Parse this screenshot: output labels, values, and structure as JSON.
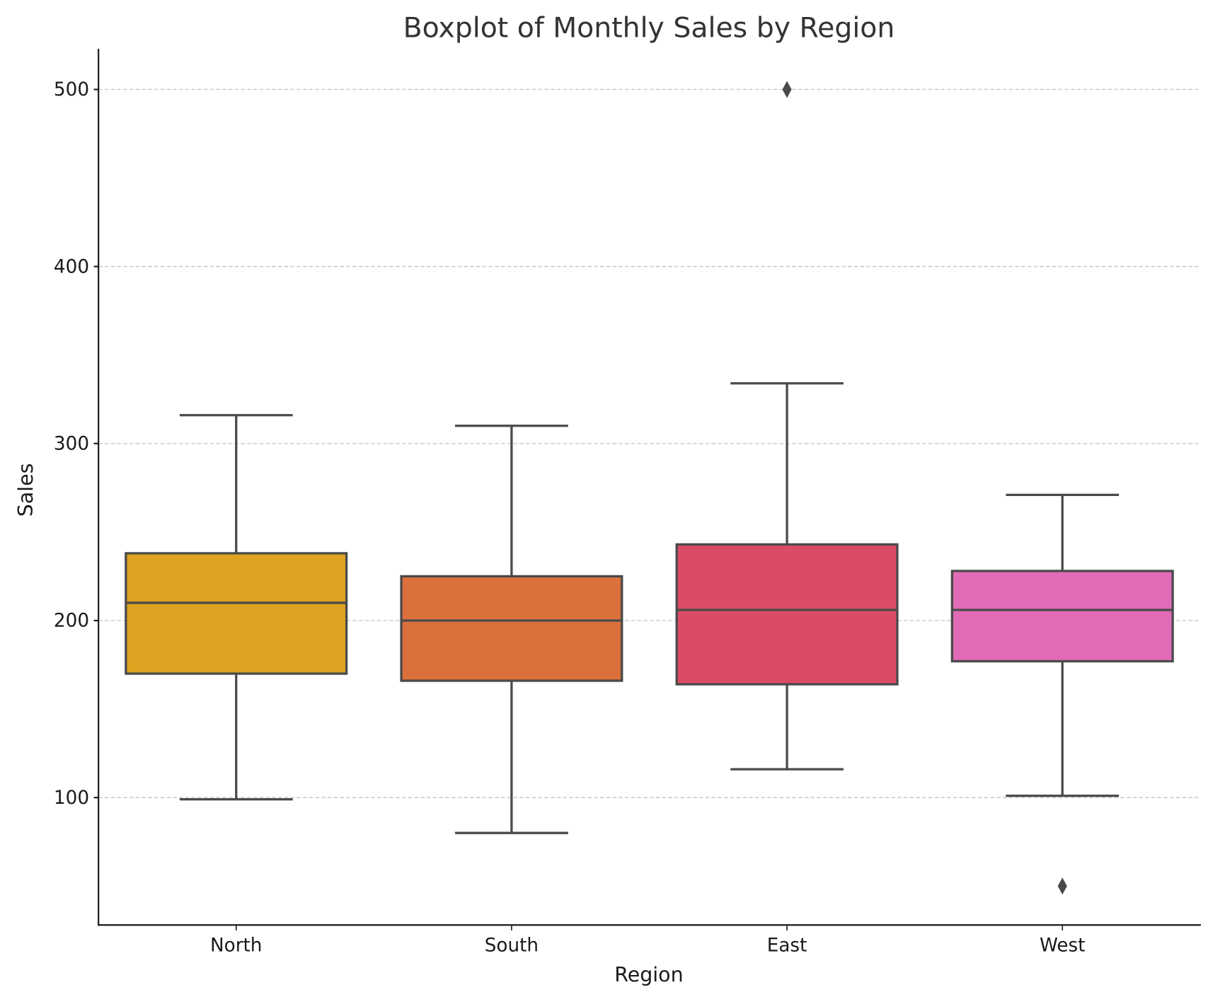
{
  "chart_data": {
    "type": "box",
    "title": "Boxplot of Monthly Sales by Region",
    "xlabel": "Region",
    "ylabel": "Sales",
    "ylim": [
      28,
      523
    ],
    "yticks": [
      100,
      200,
      300,
      400,
      500
    ],
    "ytick_labels": [
      "100",
      "200",
      "300",
      "400",
      "500"
    ],
    "grid": "y-dashed",
    "categories": [
      "North",
      "South",
      "East",
      "West"
    ],
    "series": [
      {
        "name": "North",
        "whisker_low": 99,
        "q1": 170,
        "median": 210,
        "q3": 238,
        "whisker_high": 316,
        "outliers": [],
        "color": "#dea321"
      },
      {
        "name": "South",
        "whisker_low": 80,
        "q1": 166,
        "median": 200,
        "q3": 225,
        "whisker_high": 310,
        "outliers": [],
        "color": "#db703c"
      },
      {
        "name": "East",
        "whisker_low": 116,
        "q1": 164,
        "median": 206,
        "q3": 243,
        "whisker_high": 334,
        "outliers": [
          500
        ],
        "color": "#dc4b66"
      },
      {
        "name": "West",
        "whisker_low": 101,
        "q1": 177,
        "median": 206,
        "q3": 228,
        "whisker_high": 271,
        "outliers": [
          50
        ],
        "color": "#e26bb7"
      }
    ]
  }
}
